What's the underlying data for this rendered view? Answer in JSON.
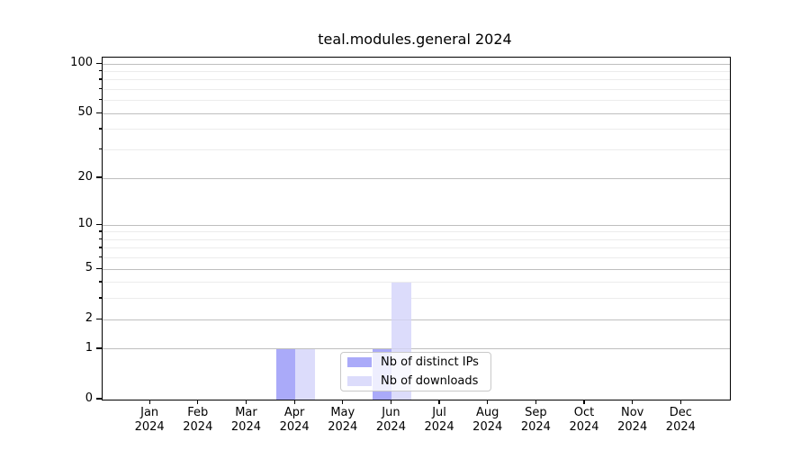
{
  "figure": {
    "title": "teal.modules.general 2024"
  },
  "chart_data": {
    "type": "bar",
    "title": "teal.modules.general 2024",
    "xlabel": "",
    "ylabel": "",
    "categories": [
      "Jan",
      "Feb",
      "Mar",
      "Apr",
      "May",
      "Jun",
      "Jul",
      "Aug",
      "Sep",
      "Oct",
      "Nov",
      "Dec"
    ],
    "x_year_suffix": "2024",
    "series": [
      {
        "name": "Nb of distinct IPs",
        "color": "#aaaaf9",
        "values": [
          0,
          0,
          0,
          1,
          0,
          1,
          0,
          0,
          0,
          0,
          0,
          0
        ]
      },
      {
        "name": "Nb of downloads",
        "color": "#dcdcfb",
        "values": [
          0,
          0,
          0,
          1,
          0,
          4,
          0,
          0,
          0,
          0,
          0,
          0
        ]
      }
    ],
    "y_axis": {
      "scale": "log1p",
      "ylim": [
        0,
        110
      ],
      "major_ticks": [
        0,
        1,
        2,
        5,
        10,
        20,
        50,
        100
      ],
      "minor_ticks": [
        3,
        4,
        6,
        7,
        8,
        9,
        30,
        40,
        60,
        70,
        80,
        90
      ]
    },
    "grid": {
      "major_color": "#c9c9c9",
      "minor_color": "#ececec",
      "overlay_color": "rgba(110,110,110,0.10)"
    },
    "legend": {
      "labels": [
        "Nb of distinct IPs",
        "Nb of downloads"
      ],
      "position": "lower center"
    }
  }
}
